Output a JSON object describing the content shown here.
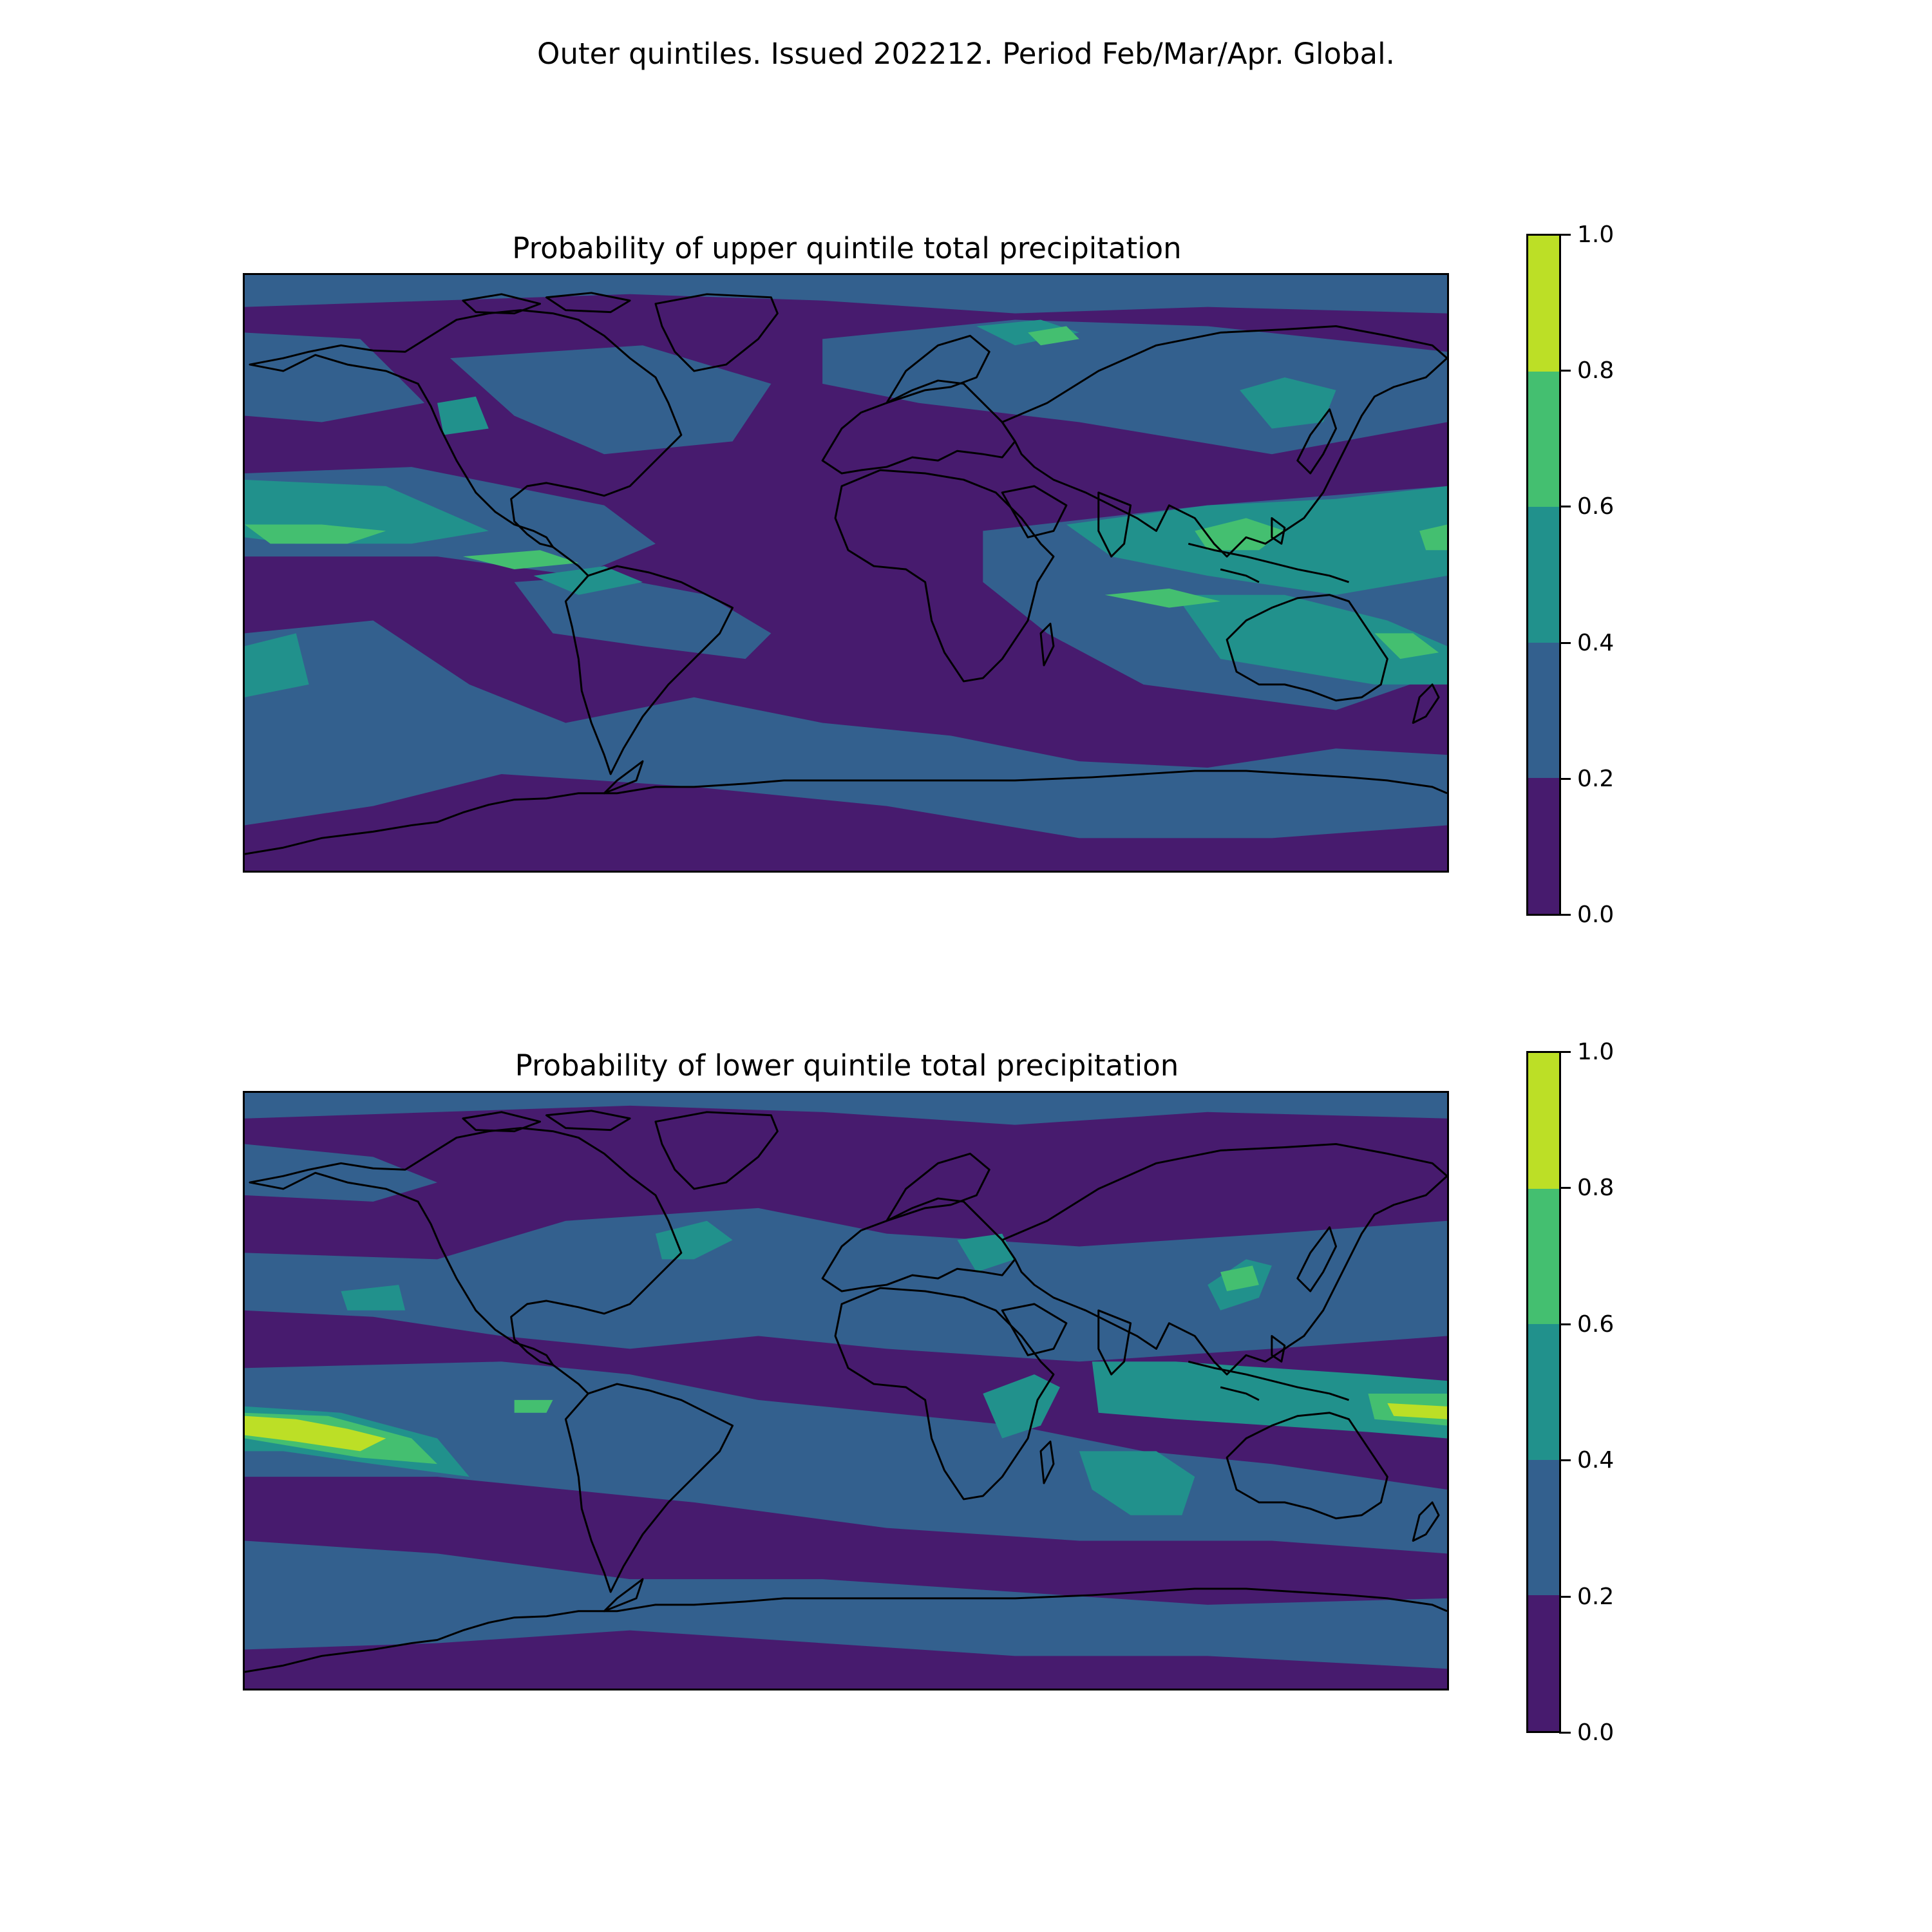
{
  "suptitle": "Outer quintiles. Issued 202212. Period Feb/Mar/Apr. Global.",
  "colors": {
    "levels": [
      "#471b6e",
      "#33608e",
      "#21918c",
      "#44bf70",
      "#bcdf26"
    ],
    "coastline": "#000000"
  },
  "colorbar": {
    "ticks": [
      "0.0",
      "0.2",
      "0.4",
      "0.6",
      "0.8",
      "1.0"
    ],
    "bounds": [
      0,
      0.2,
      0.4,
      0.6,
      0.8,
      1.0
    ]
  },
  "panels": [
    {
      "title": "Probability of upper quintile total precipitation",
      "field": "upper"
    },
    {
      "title": "Probability of lower quintile total precipitation",
      "field": "lower"
    }
  ],
  "chart_data": [
    {
      "type": "heatmap",
      "title": "Probability of upper quintile total precipitation",
      "projection": "global lat/lon (PlateCarree)",
      "levels": [
        0,
        0.2,
        0.4,
        0.6,
        0.8,
        1.0
      ],
      "colorbar_ticks": [
        0.0,
        0.2,
        0.4,
        0.6,
        0.8,
        1.0
      ],
      "background_level": "0.0-0.2",
      "regions": [
        {
          "area": "equatorial central/east Pacific near 5N",
          "level": "0.6-0.8"
        },
        {
          "area": "Maritime Continent / Philippines",
          "level": "0.6-0.8"
        },
        {
          "area": "northern Australia / SW Pacific",
          "level": "0.6-0.8"
        },
        {
          "area": "North Pacific storm track",
          "level": "0.4-0.6"
        },
        {
          "area": "Southern Ocean belt",
          "level": "0.2-0.4"
        }
      ]
    },
    {
      "type": "heatmap",
      "title": "Probability of lower quintile total precipitation",
      "projection": "global lat/lon (PlateCarree)",
      "levels": [
        0,
        0.2,
        0.4,
        0.6,
        0.8,
        1.0
      ],
      "colorbar_ticks": [
        0.0,
        0.2,
        0.4,
        0.6,
        0.8,
        1.0
      ],
      "background_level": "0.0-0.2",
      "regions": [
        {
          "area": "central equatorial Pacific (dateline, east)",
          "level": "0.8-1.0"
        },
        {
          "area": "western equatorial Pacific (dateline, west)",
          "level": "0.8-1.0"
        },
        {
          "area": "Indian Ocean / Madagascar band",
          "level": "0.4-0.6"
        },
        {
          "area": "western North Atlantic",
          "level": "0.4-0.6"
        },
        {
          "area": "Middle East / Caspian",
          "level": "0.4-0.6"
        },
        {
          "area": "East China Sea / Japan",
          "level": "0.6-0.8"
        }
      ]
    }
  ]
}
